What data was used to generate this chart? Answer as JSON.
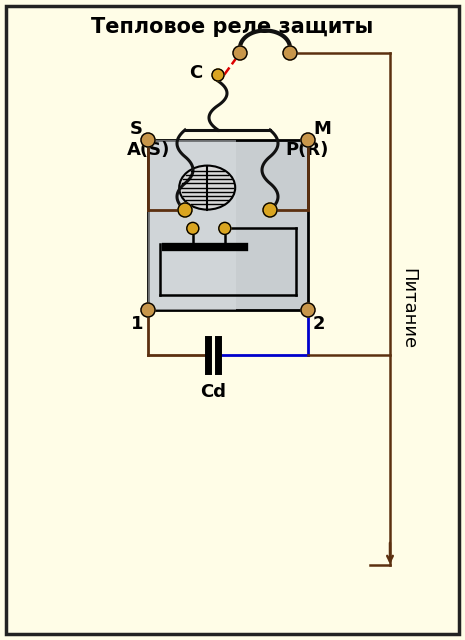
{
  "title": "Тепловое реле защиты",
  "bg_color": "#FFFDE7",
  "border_color": "#222222",
  "label_C": "C",
  "label_AS": "A(S)",
  "label_PR": "P(R)",
  "label_S": "S",
  "label_M": "M",
  "label_1": "1",
  "label_2": "2",
  "label_Cd": "Cd",
  "label_Pitanie": "Питание",
  "node_color_gold": "#DAA520",
  "node_color_tan": "#C8964A",
  "wire_color": "#5C3010",
  "red_wire": "#DD0000",
  "blue_wire": "#0000CC",
  "relay_bg": "#C8CDD0",
  "relay_bg2": "#B8C0C8",
  "coil_color": "#111111",
  "arrow_color": "#5C3010",
  "switch_color": "#111111",
  "title_fontsize": 15,
  "label_fontsize": 13
}
